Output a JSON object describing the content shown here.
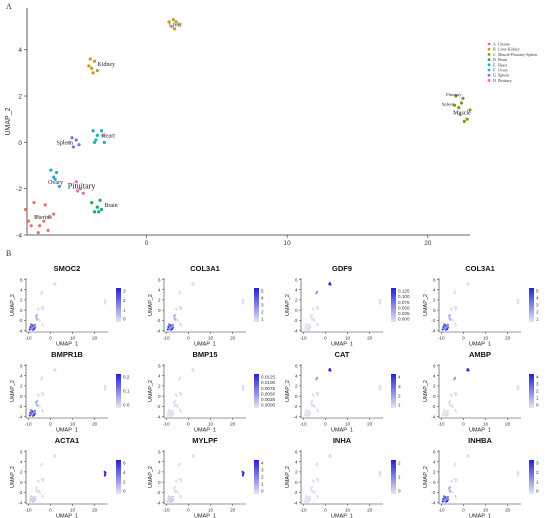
{
  "figure": {
    "panel_a_label": "A",
    "panel_b_label": "B"
  },
  "chart_data": [
    {
      "type": "scatter",
      "xlabel": "UMAP_1",
      "ylabel": "UMAP_2",
      "xlim": [
        -8.5,
        23
      ],
      "ylim": [
        -4,
        5.8
      ],
      "xticks": [
        0,
        10,
        20
      ],
      "yticks": [
        -4,
        -2,
        0,
        2,
        4
      ],
      "grid": false,
      "legend_position": "right",
      "series": [
        {
          "name": "Uterine",
          "color": "#e8716b",
          "label": "Uterine",
          "points": [
            [
              -8.6,
              -2.9
            ],
            [
              -8.4,
              -3.4
            ],
            [
              -8.0,
              -2.6
            ],
            [
              -7.8,
              -3.2
            ],
            [
              -7.6,
              -3.6
            ],
            [
              -7.3,
              -3.4
            ],
            [
              -7.2,
              -2.7
            ],
            [
              -7.0,
              -3.8
            ],
            [
              -6.9,
              -3.2
            ],
            [
              -6.6,
              -3.1
            ],
            [
              -7.7,
              -3.9
            ],
            [
              -8.2,
              -3.6
            ]
          ]
        },
        {
          "name": "Liver-Kidney",
          "color": "#c79a22",
          "label": "Liver",
          "points": [
            [
              1.6,
              5.2
            ],
            [
              1.9,
              5.3
            ],
            [
              2.0,
              4.9
            ],
            [
              2.3,
              5.1
            ],
            [
              1.8,
              5.0
            ],
            [
              2.1,
              5.2
            ]
          ]
        },
        {
          "name": "Muscle-Pituitary-Spleen",
          "color": "#7c9d18",
          "label": "Muscle",
          "points": [
            [
              22.2,
              1.5
            ],
            [
              22.5,
              1.9
            ],
            [
              22.8,
              1.0
            ],
            [
              23.0,
              1.4
            ],
            [
              22.6,
              0.9
            ],
            [
              22.3,
              1.2
            ]
          ]
        },
        {
          "name": "Brain",
          "color": "#1fa56a",
          "label": "Brain",
          "points": [
            [
              -3.9,
              -2.6
            ],
            [
              -3.7,
              -3.0
            ],
            [
              -3.5,
              -2.8
            ],
            [
              -3.3,
              -2.5
            ],
            [
              -3.2,
              -2.9
            ],
            [
              -3.4,
              -3.0
            ]
          ]
        },
        {
          "name": "Heart",
          "color": "#18b4b3",
          "label": "Heart",
          "points": [
            [
              -3.8,
              0.5
            ],
            [
              -3.6,
              0.1
            ],
            [
              -3.5,
              0.3
            ],
            [
              -3.2,
              0.5
            ],
            [
              -3.0,
              0.0
            ],
            [
              -3.1,
              0.3
            ],
            [
              -3.7,
              0.0
            ]
          ]
        },
        {
          "name": "Ovary",
          "color": "#2ca3de",
          "label": "Ovary",
          "points": [
            [
              -6.8,
              -1.2
            ],
            [
              -6.6,
              -1.5
            ],
            [
              -6.4,
              -1.3
            ],
            [
              -6.2,
              -1.9
            ],
            [
              -6.5,
              -1.6
            ]
          ]
        },
        {
          "name": "Spleen",
          "color": "#8f6bd6",
          "label": "Spleen",
          "points": [
            [
              -5.5,
              0.0
            ],
            [
              -5.2,
              -0.2
            ],
            [
              -5.0,
              0.1
            ],
            [
              -4.8,
              -0.1
            ],
            [
              -5.3,
              0.2
            ]
          ]
        },
        {
          "name": "Pituitary",
          "color": "#e669c4",
          "label": "Pituitary",
          "points": [
            [
              -5.0,
              -1.7
            ],
            [
              -4.7,
              -2.0
            ],
            [
              -4.5,
              -2.2
            ],
            [
              -4.9,
              -2.1
            ]
          ]
        }
      ],
      "extra_labels": [
        {
          "text": "Kidney",
          "x": -3.5,
          "y": 3.3,
          "color": "#c79a22"
        },
        {
          "text": "Pituitary",
          "x": 21.3,
          "y": 2.0,
          "color": "#7c9d18"
        },
        {
          "text": "Spleen",
          "x": 21.0,
          "y": 1.6,
          "color": "#7c9d18"
        }
      ],
      "extra_points": [
        {
          "series": "Liver-Kidney",
          "points": [
            [
              -4.1,
              3.3
            ],
            [
              -4.0,
              3.6
            ],
            [
              -3.7,
              3.5
            ],
            [
              -3.8,
              3.0
            ],
            [
              -3.5,
              3.1
            ],
            [
              -3.9,
              3.2
            ]
          ]
        },
        {
          "series": "Muscle-Pituitary-Spleen",
          "points": [
            [
              22.0,
              2.0
            ],
            [
              21.9,
              1.6
            ],
            [
              22.4,
              1.7
            ]
          ]
        }
      ],
      "legend": [
        "Uterine",
        "Liver-Kidney",
        "Muscle-Pituitary-Spleen",
        "Brain",
        "Heart",
        "Ovary",
        "Spleen",
        "Pituitary"
      ],
      "legend_codes": [
        "A",
        "B",
        "C",
        "D",
        "E",
        "F",
        "G",
        "H"
      ]
    },
    {
      "type": "scatter",
      "subtype": "feature_plot_grid",
      "xlabel": "UMAP_1",
      "ylabel": "UMAP_2",
      "xlim": [
        -11,
        26
      ],
      "ylim": [
        -4.3,
        6.3
      ],
      "xticks": [
        -10,
        0,
        10,
        20
      ],
      "yticks": [
        -4,
        -2,
        0,
        2,
        4,
        6
      ],
      "low_color": "#e6e6f0",
      "high_color": "#2323d6",
      "panels": [
        {
          "gene": "SMOC2",
          "legend_ticks": [
            "3",
            "2",
            "1",
            "0"
          ],
          "max": 3.3,
          "hot": "uterine"
        },
        {
          "gene": "COL3A1",
          "legend_ticks": [
            "5",
            "4",
            "3",
            "2",
            "1"
          ],
          "max": 5.5,
          "hot": "uterine"
        },
        {
          "gene": "GDF9",
          "legend_ticks": [
            "0.125",
            "0.100",
            "0.075",
            "0.050",
            "0.025",
            "0.000"
          ],
          "max": 0.13,
          "hot": "liver"
        },
        {
          "gene": "COL3A1",
          "legend_ticks": [
            "5",
            "4",
            "3",
            "2",
            "1"
          ],
          "max": 5.5,
          "hot": "uterine"
        },
        {
          "gene": "BMPR1B",
          "legend_ticks": [
            "0.2",
            "0.1",
            "0.0"
          ],
          "max": 0.25,
          "hot": "uterine"
        },
        {
          "gene": "BMP15",
          "legend_ticks": [
            "0.0125",
            "0.0100",
            "0.0075",
            "0.0050",
            "0.0025",
            "0.0000"
          ],
          "max": 0.013,
          "hot": "none"
        },
        {
          "gene": "CAT",
          "legend_ticks": [
            "4",
            "3",
            "2",
            "1"
          ],
          "max": 4.5,
          "hot": "liver"
        },
        {
          "gene": "AMBP",
          "legend_ticks": [
            "4",
            "3",
            "2",
            "1",
            "0"
          ],
          "max": 4.4,
          "hot": "liver"
        },
        {
          "gene": "ACTA1",
          "legend_ticks": [
            "6",
            "4",
            "2",
            "0"
          ],
          "max": 6.6,
          "hot": "muscle"
        },
        {
          "gene": "MYLPF",
          "legend_ticks": [
            "4",
            "3",
            "2",
            "1",
            "0"
          ],
          "max": 4.5,
          "hot": "muscle"
        },
        {
          "gene": "INHA",
          "legend_ticks": [
            "2",
            "1",
            "0"
          ],
          "max": 2.5,
          "hot": "none"
        },
        {
          "gene": "INHBA",
          "legend_ticks": [
            "3",
            "2",
            "1",
            "0"
          ],
          "max": 3.4,
          "hot": "uterine"
        }
      ]
    }
  ]
}
